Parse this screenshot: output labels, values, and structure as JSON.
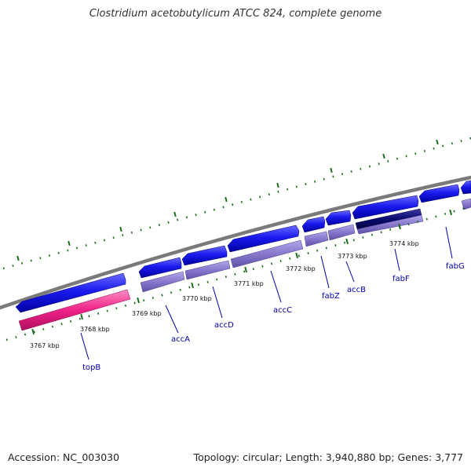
{
  "title": "Clostridium acetobutylicum ATCC 824, complete genome",
  "footer": {
    "accession": "Accession: NC_003030",
    "summary": "Topology: circular; Length: 3,940,880 bp; Genes: 3,777"
  },
  "ticks": [
    "3767 kbp",
    "3768 kbp",
    "3769 kbp",
    "3770 kbp",
    "3771 kbp",
    "3772 kbp",
    "3773 kbp",
    "3774 kbp"
  ],
  "genes": [
    "topB",
    "accA",
    "accD",
    "accC",
    "fabZ",
    "accB",
    "fabF",
    "fabG"
  ],
  "colors": {
    "cds": "#1a1aee",
    "cds_selected": "#0a0a6e",
    "gene_track": "#8877cc",
    "topB_track": "#ee2288",
    "backbone": "#7a7a7a",
    "ticks": "#1e6e1e",
    "gene_label": "#0000aa"
  }
}
